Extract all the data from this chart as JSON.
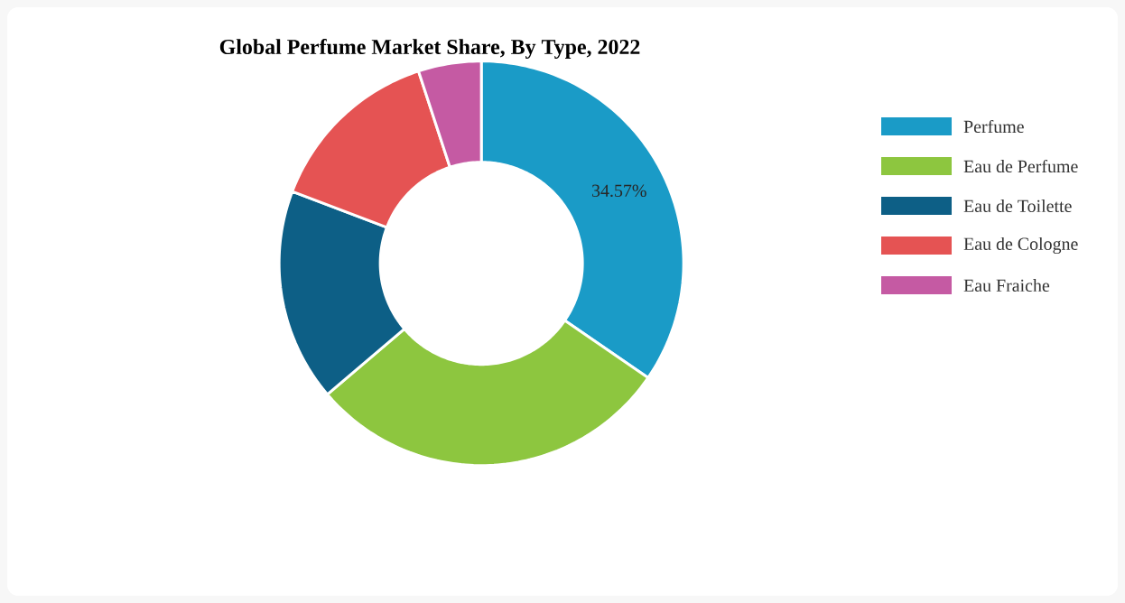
{
  "chart_data": {
    "type": "donut",
    "title": "Global Perfume Market Share, By Type, 2022",
    "categories": [
      "Perfume",
      "Eau de Perfume",
      "Eau de Toilette",
      "Eau de Cologne",
      "Eau Fraiche"
    ],
    "values": [
      34.57,
      29.2,
      17.0,
      14.2,
      5.03
    ],
    "colors": [
      "#1a9bc7",
      "#8dc63f",
      "#0d5f86",
      "#e55353",
      "#c55aa3"
    ],
    "value_labels": [
      "34.57%",
      null,
      null,
      null,
      null
    ],
    "legend": "right"
  }
}
